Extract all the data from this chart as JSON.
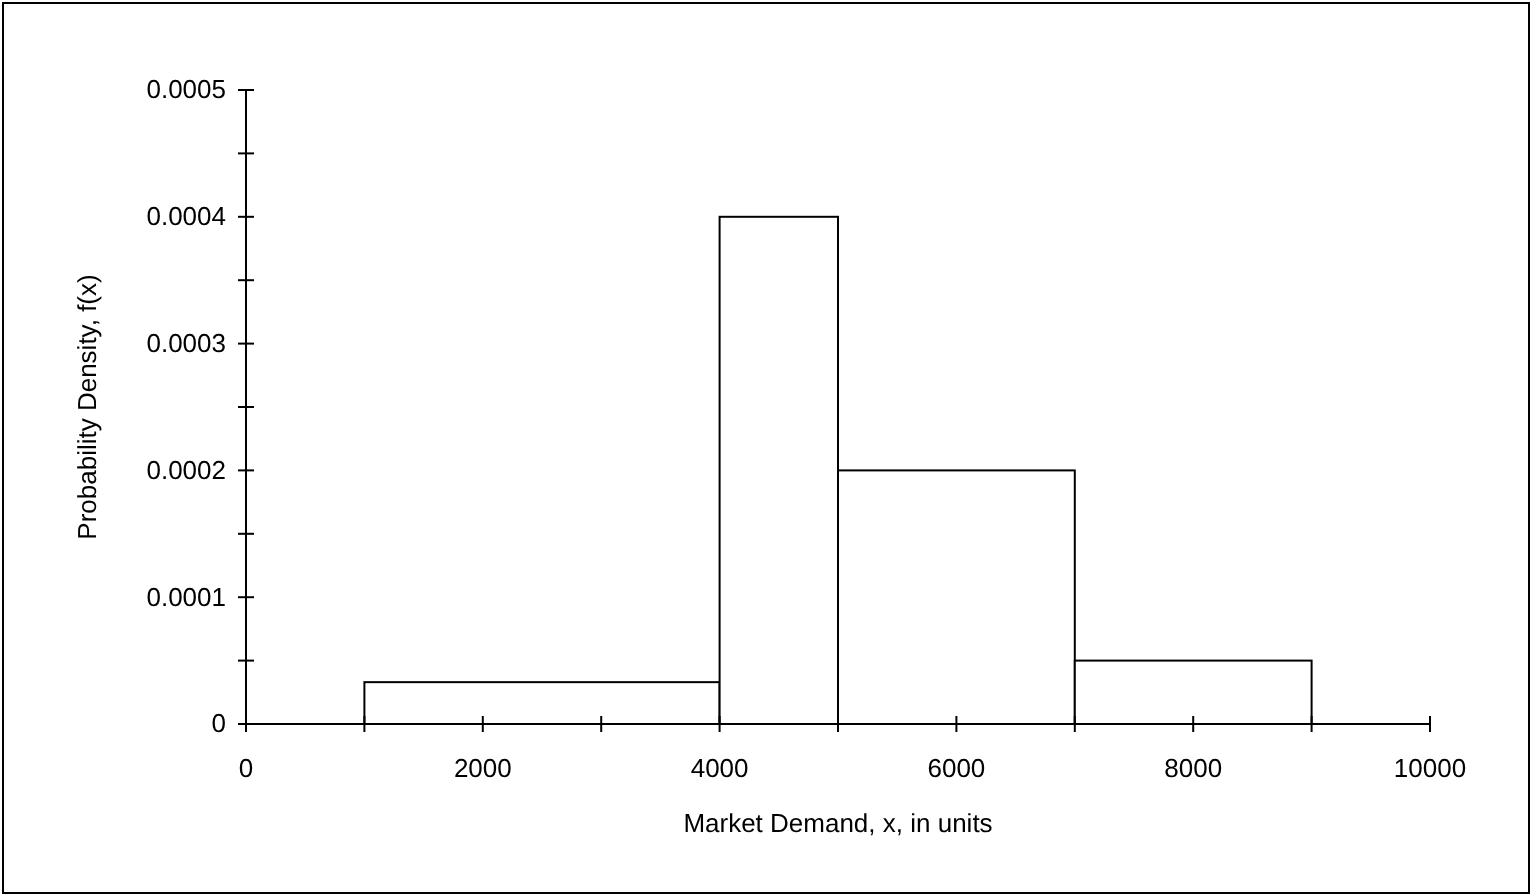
{
  "chart_data": {
    "type": "histogram",
    "xlabel": "Market Demand, x, in units",
    "ylabel": "Probability Density, f(x)",
    "bins": [
      1000,
      4000,
      5000,
      7000,
      9000
    ],
    "values": [
      3.3e-05,
      0.0004,
      0.0002,
      5e-05
    ],
    "color": "#ffffff",
    "xlim": [
      0,
      10000
    ],
    "xticks": [
      0,
      {
        "value": 1000,
        "label": null
      },
      2000,
      {
        "value": 3000,
        "label": null
      },
      4000,
      {
        "value": 5000,
        "label": null
      },
      6000,
      {
        "value": 7000,
        "label": null
      },
      8000,
      {
        "value": 9000,
        "label": null
      },
      10000
    ],
    "ylim": [
      0,
      0.0005
    ],
    "yticks": [
      0,
      {
        "value": 5e-05,
        "label": null
      },
      0.0001,
      {
        "value": 0.00015,
        "label": null
      },
      0.0002,
      {
        "value": 0.00025,
        "label": null
      },
      0.0003,
      {
        "value": 0.00035,
        "label": null
      },
      0.0004,
      {
        "value": 0.00045,
        "label": null
      },
      0.0005
    ],
    "grid": false
  }
}
